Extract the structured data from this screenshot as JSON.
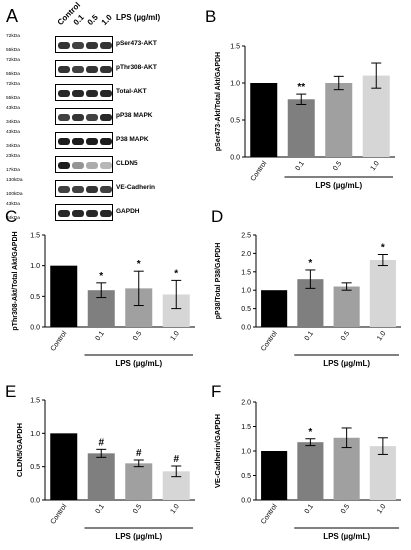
{
  "panelA": {
    "letter": "A",
    "lanes": [
      "Control",
      "0.1",
      "0.5",
      "1.0"
    ],
    "lps_label": "LPS (µg/ml)",
    "blots": [
      {
        "label": "pSer473-AKT",
        "mw_top": "72kDa",
        "mw_bot": "55kDa",
        "intensity": [
          0.85,
          0.8,
          0.85,
          0.85
        ]
      },
      {
        "label": "pThr308-AKT",
        "mw_top": "72kDa",
        "mw_bot": "55kDa",
        "intensity": [
          0.85,
          0.8,
          0.85,
          0.85
        ]
      },
      {
        "label": "Total-AKT",
        "mw_top": "72kDa",
        "mw_bot": "55kDa",
        "intensity": [
          0.9,
          0.9,
          0.9,
          0.9
        ]
      },
      {
        "label": "pP38 MAPK",
        "mw_top": "43kDa",
        "mw_bot": "34kDa",
        "intensity": [
          0.8,
          0.85,
          0.8,
          0.9
        ]
      },
      {
        "label": "P38 MAPK",
        "mw_top": "43kDa",
        "mw_bot": "34kDa",
        "intensity": [
          0.95,
          0.95,
          0.95,
          0.95
        ]
      },
      {
        "label": "CLDN5",
        "mw_top": "23kDa",
        "mw_bot": "17kDa",
        "intensity": [
          0.95,
          0.45,
          0.35,
          0.3
        ]
      },
      {
        "label": "VE-Cadherin",
        "mw_top": "130kDa",
        "mw_bot": "100kDa",
        "intensity": [
          0.8,
          0.8,
          0.85,
          0.8
        ]
      },
      {
        "label": "GAPDH",
        "mw_top": "43kDa",
        "mw_bot": "34kDa",
        "intensity": [
          0.9,
          0.9,
          0.9,
          0.9
        ]
      }
    ]
  },
  "chart_data": [
    {
      "letter": "B",
      "type": "bar",
      "categories": [
        "Control",
        "0.1",
        "0.5",
        "1.0"
      ],
      "values": [
        1.0,
        0.78,
        1.0,
        1.1
      ],
      "errors": [
        0,
        0.07,
        0.09,
        0.17
      ],
      "annotations": [
        "",
        "**",
        "",
        ""
      ],
      "ylabel": "pSer473-Akt/Total Akt/GAPDH",
      "xlabel": "LPS (µg/mL)",
      "ylim": [
        0,
        1.5
      ],
      "ytick_labels": [
        "0.0",
        "0.5",
        "1.0",
        "1.5"
      ],
      "colors": [
        "#000000",
        "#7f7f7f",
        "#a0a0a0",
        "#d6d6d6"
      ]
    },
    {
      "letter": "C",
      "type": "bar",
      "categories": [
        "Control",
        "0.1",
        "0.5",
        "1.0"
      ],
      "values": [
        1.0,
        0.6,
        0.63,
        0.53
      ],
      "errors": [
        0,
        0.12,
        0.28,
        0.23
      ],
      "annotations": [
        "",
        "*",
        "*",
        "*"
      ],
      "ylabel": "pThr308-Akt/Total Akt/GAPDH",
      "xlabel": "LPS (µg/mL)",
      "ylim": [
        0,
        1.5
      ],
      "ytick_labels": [
        "0.0",
        "0.5",
        "1.0",
        "1.5"
      ],
      "colors": [
        "#000000",
        "#7f7f7f",
        "#a0a0a0",
        "#d6d6d6"
      ]
    },
    {
      "letter": "D",
      "type": "bar",
      "categories": [
        "Control",
        "0.1",
        "0.5",
        "1.0"
      ],
      "values": [
        1.0,
        1.3,
        1.1,
        1.82
      ],
      "errors": [
        0,
        0.25,
        0.1,
        0.15
      ],
      "annotations": [
        "",
        "*",
        "",
        "*"
      ],
      "ylabel": "pP38/Total P38/GAPDH",
      "xlabel": "LPS (µg/mL)",
      "ylim": [
        0,
        2.5
      ],
      "ytick_labels": [
        "0.0",
        "0.5",
        "1.0",
        "1.5",
        "2.0",
        "2.5"
      ],
      "colors": [
        "#000000",
        "#7f7f7f",
        "#a0a0a0",
        "#d6d6d6"
      ]
    },
    {
      "letter": "E",
      "type": "bar",
      "categories": [
        "Control",
        "0.1",
        "0.5",
        "1.0"
      ],
      "values": [
        1.0,
        0.7,
        0.55,
        0.43
      ],
      "errors": [
        0,
        0.06,
        0.05,
        0.08
      ],
      "annotations": [
        "",
        "#",
        "#",
        "#"
      ],
      "ylabel": "CLDN5/GAPDH",
      "xlabel": "LPS (µg/mL)",
      "ylim": [
        0,
        1.5
      ],
      "ytick_labels": [
        "0.0",
        "0.5",
        "1.0",
        "1.5"
      ],
      "colors": [
        "#000000",
        "#7f7f7f",
        "#a0a0a0",
        "#d6d6d6"
      ]
    },
    {
      "letter": "F",
      "type": "bar",
      "categories": [
        "Control",
        "0.1",
        "0.5",
        "1.0"
      ],
      "values": [
        1.0,
        1.18,
        1.27,
        1.1
      ],
      "errors": [
        0,
        0.07,
        0.2,
        0.17
      ],
      "annotations": [
        "",
        "*",
        "",
        ""
      ],
      "ylabel": "VE-Cadherin/GAPDH",
      "xlabel": "LPS (µg/mL)",
      "ylim": [
        0,
        2.0
      ],
      "ytick_labels": [
        "0.0",
        "0.5",
        "1.0",
        "1.5",
        "2.0"
      ],
      "colors": [
        "#000000",
        "#7f7f7f",
        "#a0a0a0",
        "#d6d6d6"
      ]
    }
  ]
}
